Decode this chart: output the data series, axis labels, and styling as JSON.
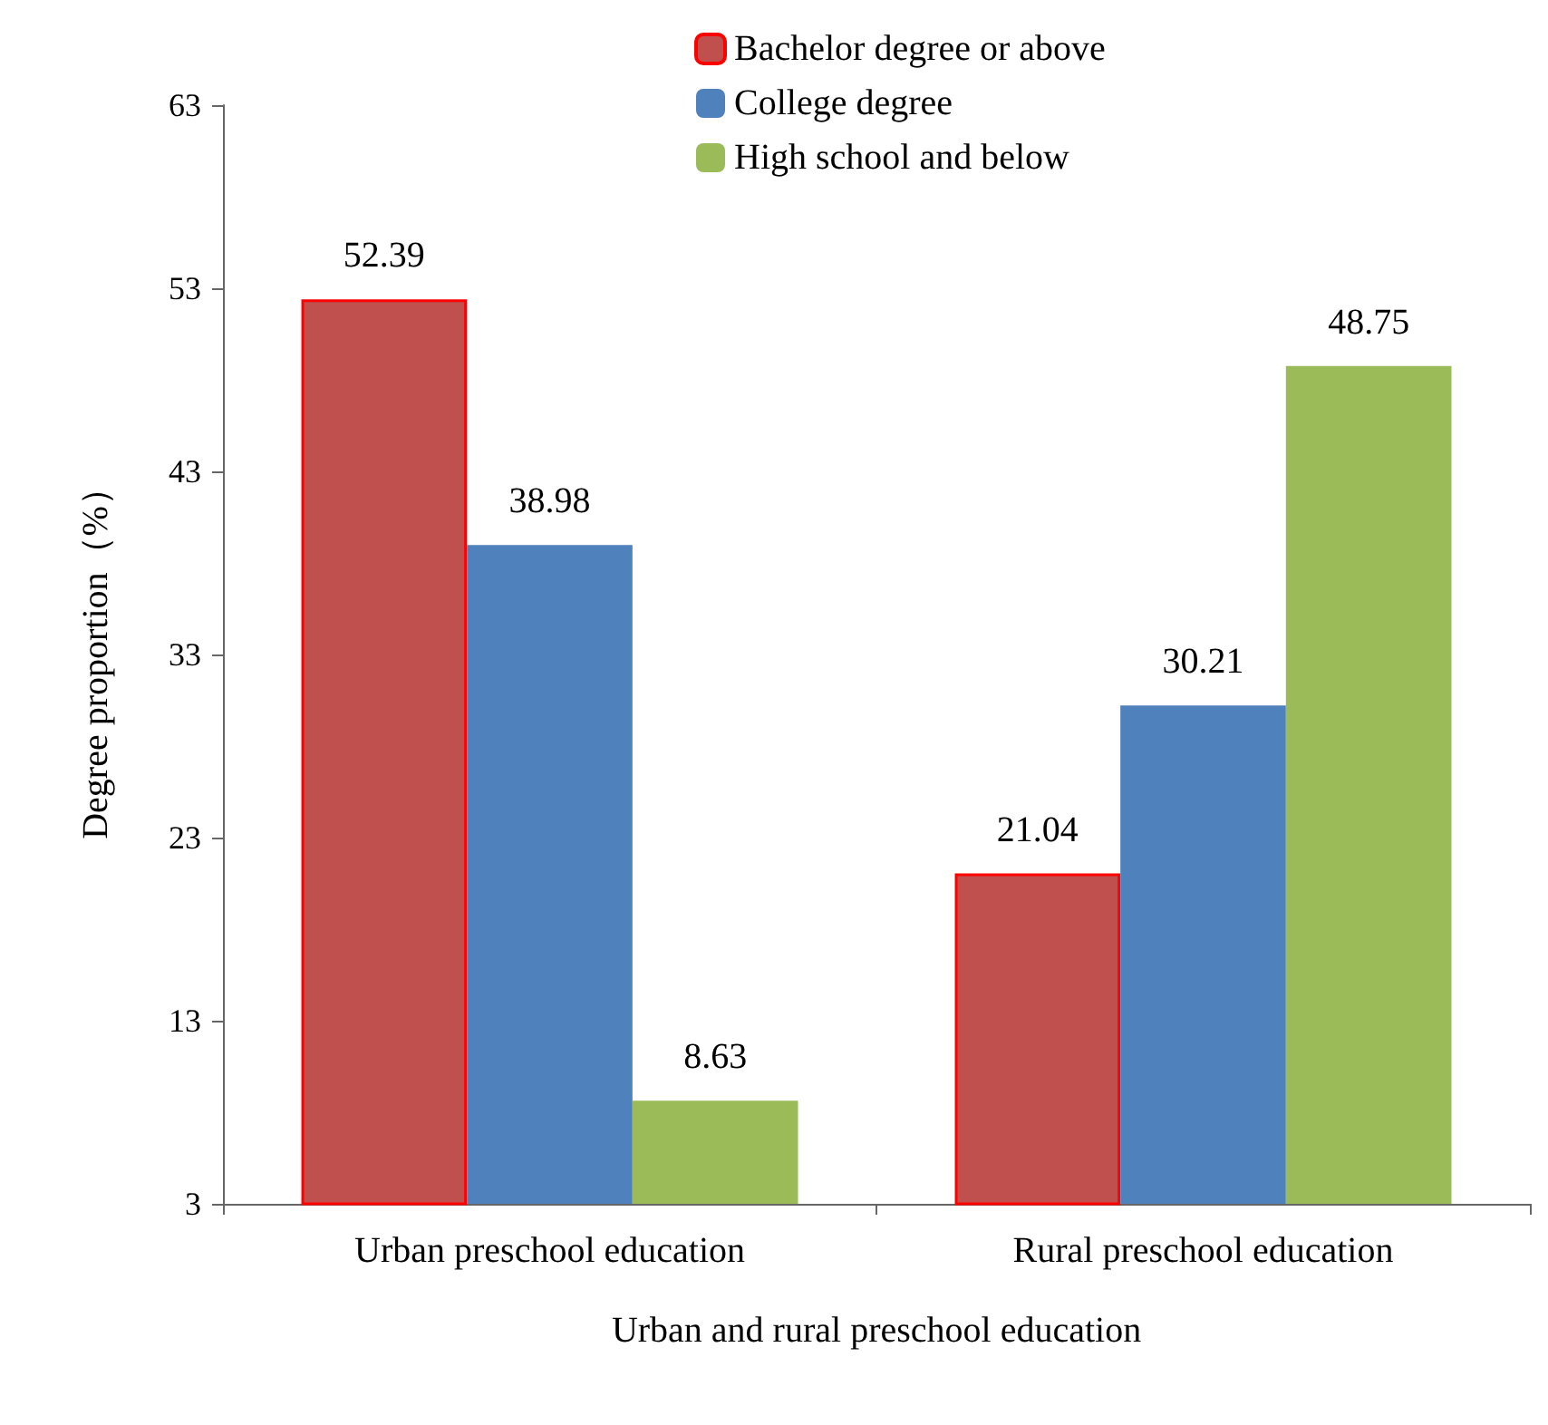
{
  "chart_data": {
    "type": "bar",
    "xlabel": "Urban and rural preschool education",
    "ylabel": "Degree proportion（%）",
    "categories": [
      "Urban preschool education",
      "Rural preschool education"
    ],
    "series": [
      {
        "name": "Bachelor degree or above",
        "color": "#c0504d",
        "values": [
          52.39,
          21.04
        ]
      },
      {
        "name": "College degree",
        "color": "#4f81bd",
        "values": [
          38.98,
          30.21
        ]
      },
      {
        "name": "High school and below",
        "color": "#9bbb59",
        "values": [
          8.63,
          48.75
        ]
      }
    ],
    "ylim": [
      3,
      63
    ],
    "yticks": [
      3,
      13,
      23,
      33,
      43,
      53,
      63
    ],
    "grid": false,
    "legend": "top",
    "data_labels": true
  }
}
